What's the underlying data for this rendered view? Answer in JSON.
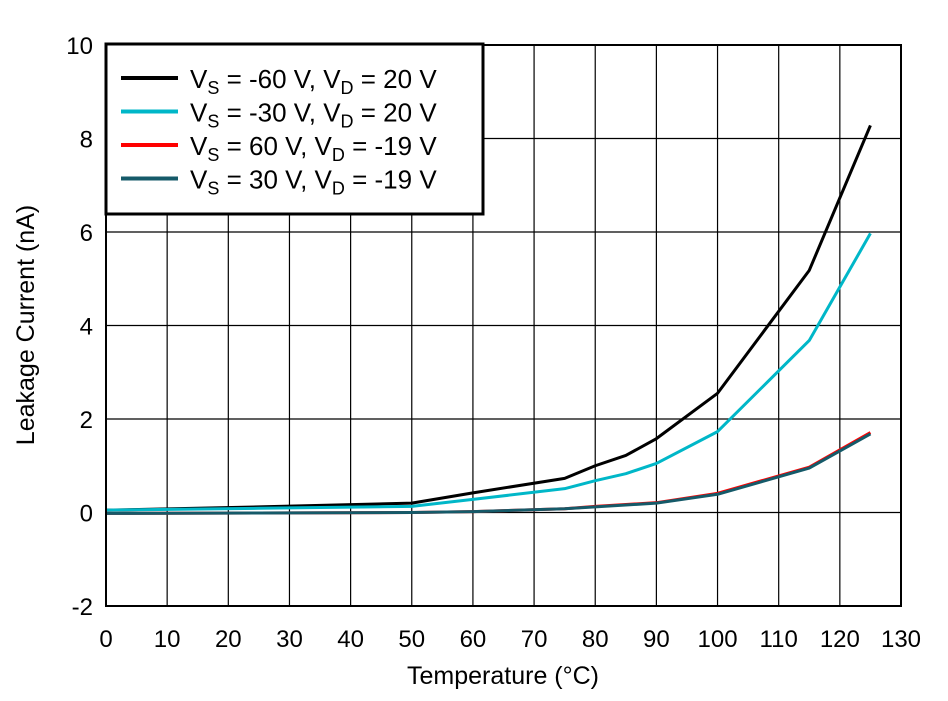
{
  "chart_data": {
    "type": "line",
    "title": "",
    "xlabel": "Temperature (°C)",
    "ylabel": "Leakage Current (nA)",
    "xlim": [
      0,
      130
    ],
    "ylim": [
      -2,
      10
    ],
    "xticks": [
      "0",
      "10",
      "20",
      "30",
      "40",
      "50",
      "60",
      "70",
      "80",
      "90",
      "100",
      "110",
      "120",
      "130"
    ],
    "yticks": [
      "-2",
      "0",
      "2",
      "4",
      "6",
      "8",
      "10"
    ],
    "grid": true,
    "legend_position": "top-left",
    "x": [
      0,
      25,
      50,
      60,
      75,
      80,
      85,
      90,
      100,
      115,
      125
    ],
    "series": [
      {
        "name": "VS = -60 V, VD = 20 V",
        "label_parts": [
          "V",
          "S",
          " = -60 V, ",
          "V",
          "D",
          " = 20 V"
        ],
        "color": "#000000",
        "values": [
          0.05,
          0.12,
          0.2,
          0.42,
          0.73,
          1.0,
          1.22,
          1.58,
          2.55,
          5.18,
          8.28
        ]
      },
      {
        "name": "VS = -30 V, VD = 20 V",
        "label_parts": [
          "V",
          "S",
          " = -30 V, ",
          "V",
          "D",
          " = 20 V"
        ],
        "color": "#00B7C8",
        "values": [
          0.05,
          0.09,
          0.13,
          0.28,
          0.51,
          0.68,
          0.83,
          1.05,
          1.73,
          3.68,
          5.97
        ]
      },
      {
        "name": "VS = 60 V, VD = -19 V",
        "label_parts": [
          "V",
          "S",
          " = 60 V, ",
          "V",
          "D",
          " = -19 V"
        ],
        "color": "#FF0000",
        "values": [
          -0.02,
          -0.01,
          0.0,
          0.02,
          0.08,
          0.13,
          0.17,
          0.21,
          0.41,
          0.97,
          1.71
        ]
      },
      {
        "name": "VS = 30 V, VD = -19 V",
        "label_parts": [
          "V",
          "S",
          " = 30 V, ",
          "V",
          "D",
          " = -19 V"
        ],
        "color": "#155A69",
        "values": [
          -0.02,
          -0.01,
          0.0,
          0.02,
          0.08,
          0.12,
          0.16,
          0.2,
          0.39,
          0.95,
          1.68
        ]
      }
    ]
  }
}
